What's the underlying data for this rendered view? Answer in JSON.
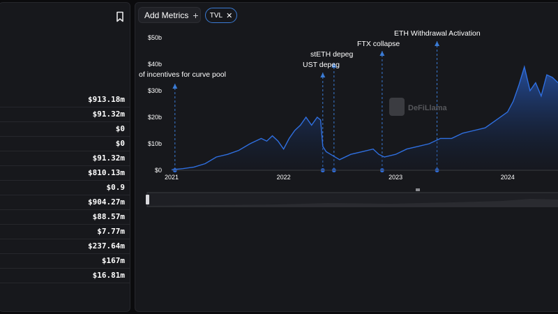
{
  "left_panel": {
    "values": [
      "$913.18m",
      "$91.32m",
      "$0",
      "$0",
      "$91.32m",
      "$810.13m",
      "$0.9",
      "$904.27m",
      "$88.57m",
      "$7.77m",
      "$237.64m",
      "$167m",
      "$16.81m"
    ]
  },
  "toolbar": {
    "add_metrics_label": "Add Metrics",
    "add_icon": "plus-icon",
    "tvl_chip_label": "TVL",
    "tvl_remove_icon": "close-icon"
  },
  "watermark": "DeFiLlama",
  "colors": {
    "accent": "#3a7bd5",
    "line": "#2f6fe0",
    "background": "#0b0b0d",
    "panel": "#17181c"
  },
  "chart_data": {
    "type": "area",
    "ylim": [
      0,
      50
    ],
    "y_ticks": [
      0,
      10,
      20,
      30,
      40,
      50
    ],
    "y_tick_labels": [
      "$0",
      "$10b",
      "$20b",
      "$30b",
      "$40b",
      "$50b"
    ],
    "x_range": [
      2021.0,
      2024.45
    ],
    "x_ticks": [
      2021,
      2022,
      2023,
      2024
    ],
    "x_tick_labels": [
      "2021",
      "2022",
      "2023",
      "2024"
    ],
    "series": [
      {
        "x": [
          2021.0,
          2021.1,
          2021.2,
          2021.3,
          2021.4,
          2021.5,
          2021.6,
          2021.7,
          2021.8,
          2021.85,
          2021.9,
          2021.95,
          2022.0,
          2022.05,
          2022.1,
          2022.15,
          2022.2,
          2022.25,
          2022.3,
          2022.33,
          2022.35,
          2022.38,
          2022.42,
          2022.5,
          2022.6,
          2022.7,
          2022.8,
          2022.85,
          2022.9,
          2023.0,
          2023.1,
          2023.2,
          2023.3,
          2023.4,
          2023.5,
          2023.6,
          2023.7,
          2023.8,
          2023.9,
          2024.0,
          2024.05,
          2024.1,
          2024.15,
          2024.2,
          2024.25,
          2024.3,
          2024.35,
          2024.4,
          2024.45
        ],
        "y": [
          0.2,
          0.6,
          1.2,
          2.5,
          5,
          6,
          7.5,
          10,
          12,
          11,
          13,
          11,
          8,
          12,
          15,
          17,
          20,
          17,
          20,
          19,
          9,
          7,
          6,
          4,
          6,
          7,
          8,
          6,
          5,
          6,
          8,
          9,
          10,
          12,
          12,
          14,
          15,
          16,
          19,
          22,
          26,
          32,
          39,
          30,
          33,
          28,
          36,
          35,
          33
        ]
      }
    ],
    "annotations": [
      {
        "label": "of incentives for curve pool",
        "x": 2021.03
      },
      {
        "label": "stETH depeg",
        "x": 2022.35
      },
      {
        "label": "UST depeg",
        "x": 2022.45
      },
      {
        "label": "FTX collapse",
        "x": 2022.88
      },
      {
        "label": "ETH Withdrawal Activation",
        "x": 2023.37
      }
    ]
  }
}
